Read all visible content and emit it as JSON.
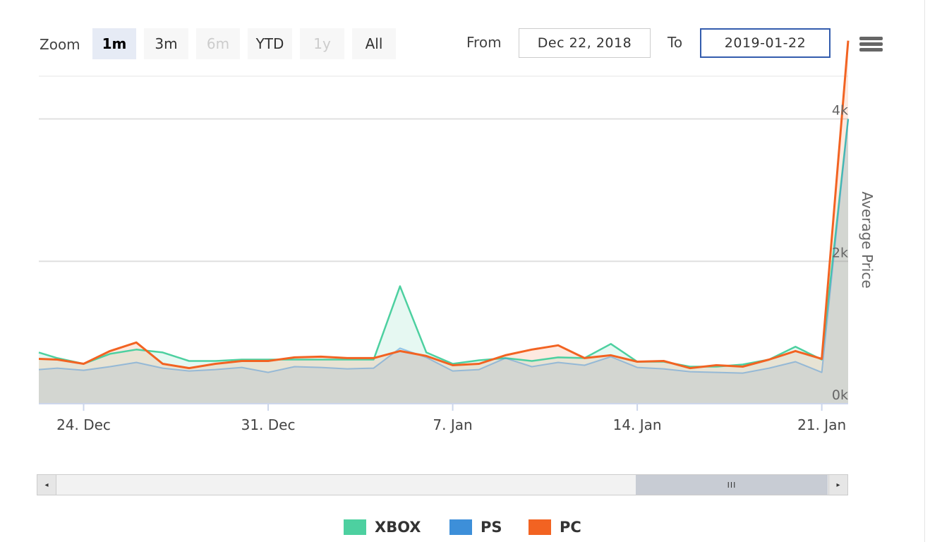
{
  "toolbar": {
    "zoom_label": "Zoom",
    "zoom_buttons": [
      {
        "label": "1m",
        "state": "active"
      },
      {
        "label": "3m",
        "state": "normal"
      },
      {
        "label": "6m",
        "state": "disabled"
      },
      {
        "label": "YTD",
        "state": "normal"
      },
      {
        "label": "1y",
        "state": "disabled"
      },
      {
        "label": "All",
        "state": "normal"
      }
    ],
    "from_label": "From",
    "from_value": "Dec 22, 2018",
    "to_label": "To",
    "to_value": "2019-01-22",
    "menu_icon": "hamburger-menu-icon"
  },
  "navigator": {
    "left_arrow": "◂",
    "right_arrow": "▸",
    "grip": "III"
  },
  "chart_data": {
    "type": "area",
    "title": "",
    "xlabel": "",
    "ylabel": "Average Price",
    "ylim": [
      0,
      4600
    ],
    "yticks": [
      0,
      2000,
      4000
    ],
    "ytick_labels": [
      "0k",
      "2k",
      "4k"
    ],
    "xlim": [
      22.3,
      53.0
    ],
    "xticks": [
      {
        "label": "24. Dec",
        "x": 24
      },
      {
        "label": "31. Dec",
        "x": 31
      },
      {
        "label": "7. Jan",
        "x": 38
      },
      {
        "label": "14. Jan",
        "x": 45
      },
      {
        "label": "21. Jan",
        "x": 52
      }
    ],
    "x_unit": "day index (1 = Dec 1, 2018; 32 = Jan 1, 2019)",
    "x": [
      22.3,
      23,
      24,
      25,
      26,
      27,
      28,
      29,
      30,
      31,
      32,
      33,
      34,
      35,
      36,
      37,
      38,
      39,
      40,
      41,
      42,
      43,
      44,
      45,
      46,
      47,
      48,
      49,
      50,
      51,
      52,
      53
    ],
    "series": [
      {
        "name": "XBOX",
        "color": "#4dd0a0",
        "values": [
          720,
          640,
          560,
          700,
          760,
          720,
          600,
          600,
          620,
          620,
          620,
          620,
          620,
          620,
          1650,
          720,
          560,
          610,
          640,
          600,
          650,
          640,
          840,
          590,
          590,
          520,
          520,
          550,
          620,
          800,
          620,
          4000
        ]
      },
      {
        "name": "PS",
        "color": "#3d8fd9",
        "values": [
          480,
          500,
          470,
          520,
          580,
          500,
          460,
          480,
          510,
          440,
          520,
          510,
          490,
          500,
          780,
          650,
          460,
          480,
          640,
          520,
          580,
          540,
          660,
          510,
          490,
          450,
          440,
          430,
          500,
          590,
          440,
          4000
        ]
      },
      {
        "name": "PC",
        "color": "#f26322",
        "values": [
          630,
          620,
          560,
          740,
          860,
          560,
          500,
          560,
          600,
          600,
          650,
          660,
          640,
          640,
          740,
          670,
          540,
          560,
          680,
          760,
          820,
          640,
          680,
          590,
          600,
          500,
          540,
          520,
          620,
          740,
          630,
          5100
        ]
      }
    ],
    "legend": [
      "XBOX",
      "PS",
      "PC"
    ],
    "legend_position": "bottom-center",
    "grid": true
  }
}
